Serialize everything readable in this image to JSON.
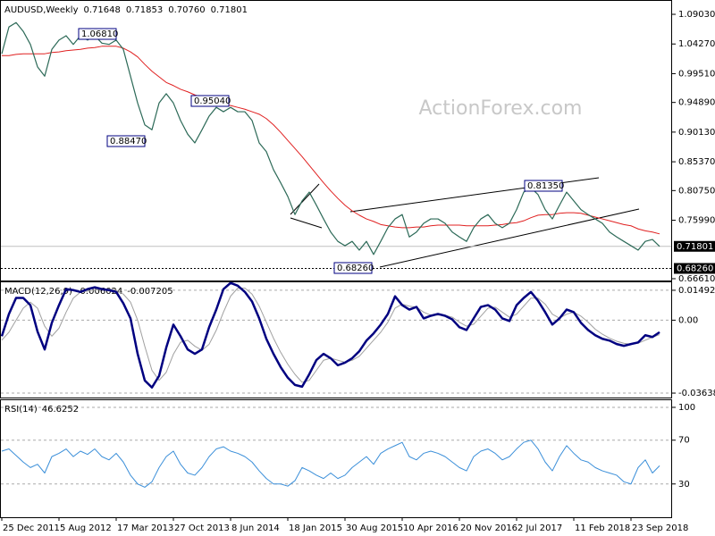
{
  "chart_data": [
    {
      "type": "line",
      "title": "AUDUSD,Weekly",
      "ohlc": [
        0.71648,
        0.71853,
        {
          "value": 0.7076,
          "label": "0.70760"
        },
        0.71801
      ],
      "watermark": "ActionForex.com",
      "ylim": [
        0.6632,
        1.1104
      ],
      "yticks": [
        {
          "value": 1.0903,
          "label": "1.09030"
        },
        {
          "value": 1.0427,
          "label": "1.04270"
        },
        {
          "value": 0.9951,
          "label": "0.99510"
        },
        {
          "value": 0.9489,
          "label": "0.94890"
        },
        {
          "value": 0.9013,
          "label": "0.90130"
        },
        {
          "value": 0.8537,
          "label": "0.85370"
        },
        {
          "value": 0.8075,
          "label": "0.80750"
        },
        {
          "value": 0.7599,
          "label": "0.75990"
        },
        {
          "value": 0.6661,
          "label": "0.66610"
        }
      ],
      "grid": false,
      "annotations": [
        {
          "value": 1.0681,
          "label": "1.06810"
        },
        {
          "value": 0.9504,
          "label": "0.95040"
        },
        {
          "value": 0.8847,
          "label": "0.88470"
        },
        {
          "value": 0.8135,
          "label": "0.81350"
        },
        {
          "value": 0.6826,
          "label": "0.68260"
        }
      ],
      "support": {
        "value": 0.6826,
        "label": "0.68260"
      },
      "series": [
        {
          "color": "#2d6a58",
          "values": [
            1.027,
            1.07,
            1.077,
            1.063,
            1.042,
            1.006,
            0.991,
            1.034,
            1.049,
            1.056,
            1.042,
            1.056,
            1.049,
            1.056,
            1.044,
            1.042,
            1.049,
            1.034,
            0.991,
            0.948,
            0.913,
            0.905,
            0.948,
            0.963,
            0.948,
            0.92,
            0.898,
            0.884,
            0.905,
            0.927,
            0.941,
            0.934,
            0.941,
            0.934,
            0.934,
            0.92,
            0.884,
            0.87,
            0.841,
            0.82,
            0.798,
            0.769,
            0.791,
            0.805,
            0.784,
            0.762,
            0.741,
            0.726,
            0.719,
            0.726,
            0.712,
            0.726,
            0.705,
            0.726,
            0.748,
            0.762,
            0.769,
            0.733,
            0.741,
            0.755,
            0.762,
            0.762,
            0.755,
            0.741,
            0.733,
            0.726,
            0.748,
            0.762,
            0.769,
            0.755,
            0.748,
            0.755,
            0.777,
            0.805,
            0.812,
            0.801,
            0.777,
            0.762,
            0.784,
            0.805,
            0.791,
            0.777,
            0.769,
            0.762,
            0.755,
            0.741,
            0.733,
            0.726,
            0.719,
            0.712,
            0.726,
            0.729,
            0.718
          ]
        },
        {
          "color": "#e02020",
          "values": [
            1.024,
            1.024,
            1.026,
            1.027,
            1.027,
            1.027,
            1.027,
            1.029,
            1.03,
            1.032,
            1.033,
            1.034,
            1.036,
            1.037,
            1.039,
            1.039,
            1.039,
            1.036,
            1.03,
            1.022,
            1.01,
            0.999,
            0.99,
            0.981,
            0.976,
            0.97,
            0.966,
            0.961,
            0.957,
            0.953,
            0.948,
            0.946,
            0.944,
            0.941,
            0.938,
            0.934,
            0.93,
            0.923,
            0.913,
            0.901,
            0.888,
            0.875,
            0.862,
            0.848,
            0.834,
            0.82,
            0.807,
            0.795,
            0.784,
            0.775,
            0.768,
            0.762,
            0.758,
            0.753,
            0.751,
            0.749,
            0.748,
            0.748,
            0.749,
            0.749,
            0.751,
            0.752,
            0.752,
            0.752,
            0.752,
            0.751,
            0.751,
            0.751,
            0.751,
            0.752,
            0.753,
            0.755,
            0.756,
            0.759,
            0.764,
            0.768,
            0.769,
            0.769,
            0.771,
            0.772,
            0.772,
            0.771,
            0.768,
            0.765,
            0.762,
            0.759,
            0.756,
            0.753,
            0.751,
            0.746,
            0.743,
            0.741,
            0.738
          ]
        }
      ]
    },
    {
      "type": "line",
      "title": "MACD(12,26,9)",
      "readings": [
        -0.006024,
        -0.007205
      ],
      "ylim": [
        -0.0386,
        0.01846
      ],
      "yticks": [
        0.014925,
        {
          "value": 0,
          "label": "0.00"
        },
        -0.036389
      ],
      "grid": true,
      "series": [
        {
          "color": "#000080",
          "values": [
            -0.008,
            0.0031,
            0.0111,
            0.0111,
            0.0075,
            -0.0057,
            -0.0146,
            -0.0013,
            0.0075,
            0.0155,
            0.015,
            0.0141,
            0.0155,
            0.0164,
            0.0155,
            0.015,
            0.0141,
            0.0084,
            0.0009,
            -0.0168,
            -0.0301,
            -0.0336,
            -0.0278,
            -0.0137,
            -0.0022,
            -0.008,
            -0.0146,
            -0.0168,
            -0.0146,
            -0.0035,
            0.0053,
            0.0155,
            0.0186,
            0.0172,
            0.0141,
            0.0093,
            0.0009,
            -0.0093,
            -0.0168,
            -0.0234,
            -0.0287,
            -0.0323,
            -0.0332,
            -0.027,
            -0.0199,
            -0.0168,
            -0.019,
            -0.0225,
            -0.0212,
            -0.019,
            -0.0155,
            -0.0102,
            -0.0066,
            -0.0022,
            0.0031,
            0.0119,
            0.0075,
            0.0053,
            0.0066,
            0.0009,
            0.0022,
            0.0031,
            0.0022,
            0.0004,
            -0.0035,
            -0.0049,
            0.0009,
            0.0066,
            0.0075,
            0.0053,
            0.0009,
            -0.0004,
            0.0075,
            0.0111,
            0.0141,
            0.0097,
            0.004,
            -0.0022,
            0.0009,
            0.0053,
            0.004,
            -0.0013,
            -0.0049,
            -0.0075,
            -0.0093,
            -0.0102,
            -0.0119,
            -0.0128,
            -0.0119,
            -0.0111,
            -0.0075,
            -0.0084,
            -0.006
          ]
        },
        {
          "color": "#a0a0a0",
          "values": [
            -0.01,
            -0.006,
            0.0,
            0.006,
            0.009,
            0.006,
            -0.003,
            -0.008,
            -0.004,
            0.004,
            0.011,
            0.014,
            0.0145,
            0.015,
            0.0155,
            0.0155,
            0.015,
            0.013,
            0.009,
            0.0,
            -0.013,
            -0.025,
            -0.03,
            -0.026,
            -0.017,
            -0.011,
            -0.01,
            -0.013,
            -0.015,
            -0.012,
            -0.005,
            0.004,
            0.012,
            0.016,
            0.016,
            0.013,
            0.007,
            -0.001,
            -0.009,
            -0.016,
            -0.022,
            -0.027,
            -0.031,
            -0.03,
            -0.025,
            -0.02,
            -0.019,
            -0.02,
            -0.021,
            -0.02,
            -0.018,
            -0.014,
            -0.01,
            -0.006,
            -0.001,
            0.006,
            0.008,
            0.007,
            0.0065,
            0.004,
            0.0025,
            0.0025,
            0.0025,
            0.0015,
            -0.001,
            -0.003,
            -0.002,
            0.002,
            0.006,
            0.0065,
            0.004,
            0.0015,
            0.003,
            0.007,
            0.011,
            0.011,
            0.008,
            0.003,
            0.001,
            0.003,
            0.004,
            0.002,
            -0.001,
            -0.0045,
            -0.007,
            -0.009,
            -0.0105,
            -0.0115,
            -0.012,
            -0.0115,
            -0.01,
            -0.0085,
            -0.0072
          ]
        }
      ]
    },
    {
      "type": "line",
      "title": "RSI(14)",
      "readings": [
        46.6252
      ],
      "ylim": [
        -0.4,
        105.7
      ],
      "yticks": [
        100,
        70,
        30
      ],
      "grid": true,
      "categories": [
        "25 Dec 2011",
        null,
        null,
        null,
        null,
        null,
        null,
        null,
        "5 Aug 2012",
        null,
        null,
        null,
        null,
        null,
        null,
        null,
        "17 Mar 2013",
        null,
        null,
        null,
        null,
        null,
        null,
        null,
        "27 Oct 2013",
        null,
        null,
        null,
        null,
        null,
        null,
        null,
        "8 Jun 2014",
        null,
        null,
        null,
        null,
        null,
        null,
        null,
        "18 Jan 2015",
        null,
        null,
        null,
        null,
        null,
        null,
        null,
        "30 Aug 2015",
        null,
        null,
        null,
        null,
        null,
        null,
        null,
        "10 Apr 2016",
        null,
        null,
        null,
        null,
        null,
        null,
        null,
        "20 Nov 2016",
        null,
        null,
        null,
        null,
        null,
        null,
        null,
        "2 Jul 2017",
        null,
        null,
        null,
        null,
        null,
        null,
        null,
        "11 Feb 2018",
        null,
        null,
        null,
        null,
        null,
        null,
        null,
        "23 Sep 2018",
        null,
        null,
        null,
        null
      ],
      "series": [
        {
          "color": "#3b8fd9",
          "values": [
            60,
            62,
            56,
            50,
            45,
            48,
            40,
            55,
            58,
            62,
            55,
            60,
            57,
            62,
            55,
            52,
            58,
            50,
            38,
            30,
            27,
            32,
            45,
            55,
            60,
            48,
            40,
            38,
            45,
            55,
            62,
            64,
            60,
            58,
            55,
            50,
            42,
            35,
            30,
            30,
            28,
            33,
            45,
            42,
            38,
            35,
            40,
            35,
            38,
            45,
            50,
            55,
            48,
            58,
            62,
            65,
            68,
            55,
            52,
            58,
            60,
            58,
            55,
            50,
            45,
            42,
            55,
            60,
            62,
            58,
            52,
            55,
            62,
            68,
            70,
            62,
            50,
            42,
            55,
            65,
            58,
            52,
            50,
            45,
            42,
            40,
            38,
            32,
            30,
            45,
            52,
            40,
            46.6252
          ]
        }
      ]
    }
  ]
}
